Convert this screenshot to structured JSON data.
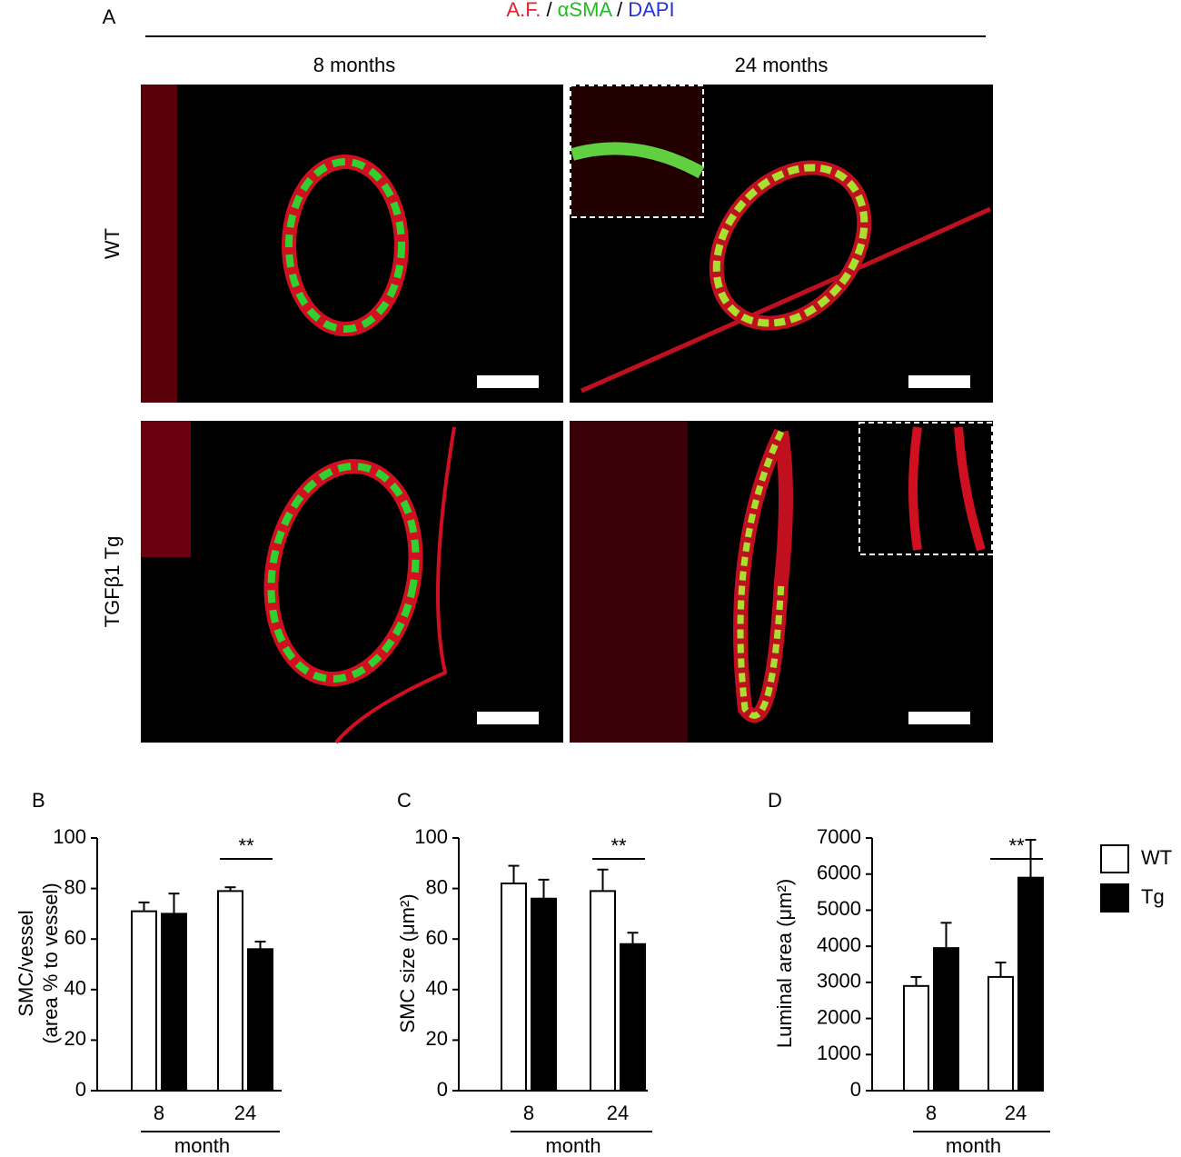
{
  "panel_a": {
    "label": "A",
    "title_parts": [
      {
        "text": "A.F.",
        "color": "#e8202a"
      },
      {
        "text": " / ",
        "color": "#000000"
      },
      {
        "text": "αSMA",
        "color": "#22bb22"
      },
      {
        "text": " / ",
        "color": "#000000"
      },
      {
        "text": "DAPI",
        "color": "#2233dd"
      }
    ],
    "columns": [
      "8 months",
      "24 months"
    ],
    "rows": [
      "WT",
      "TGFβ1 Tg"
    ]
  },
  "chart_data": [
    {
      "type": "bar",
      "label": "B",
      "ylabel": [
        "SMC/vessel",
        "(area % to vessel)"
      ],
      "xlabel": "month",
      "categories": [
        "8",
        "24"
      ],
      "annotation": "**",
      "series": [
        {
          "color": "#ffffff",
          "values": [
            71,
            79
          ],
          "errors": [
            3.5,
            1.5
          ]
        },
        {
          "color": "#000000",
          "values": [
            70,
            56
          ],
          "errors": [
            8,
            3
          ]
        }
      ],
      "ylim": [
        0,
        100
      ],
      "yticks": [
        0,
        20,
        40,
        60,
        80,
        100
      ]
    },
    {
      "type": "bar",
      "label": "C",
      "ylabel": [
        "SMC size (μm²)"
      ],
      "xlabel": "month",
      "categories": [
        "8",
        "24"
      ],
      "annotation": "**",
      "series": [
        {
          "color": "#ffffff",
          "values": [
            82,
            79
          ],
          "errors": [
            7,
            8.5
          ]
        },
        {
          "color": "#000000",
          "values": [
            76,
            58
          ],
          "errors": [
            7.5,
            4.5
          ]
        }
      ],
      "ylim": [
        0,
        100
      ],
      "yticks": [
        0,
        20,
        40,
        60,
        80,
        100
      ]
    },
    {
      "type": "bar",
      "label": "D",
      "ylabel": [
        "Luminal area (μm²)"
      ],
      "xlabel": "month",
      "categories": [
        "8",
        "24"
      ],
      "annotation": "**",
      "series": [
        {
          "name": "WT",
          "color": "#ffffff",
          "values": [
            2900,
            3150
          ],
          "errors": [
            250,
            400
          ]
        },
        {
          "name": "Tg",
          "color": "#000000",
          "values": [
            3950,
            5900
          ],
          "errors": [
            700,
            1050
          ]
        }
      ],
      "ylim": [
        0,
        7000
      ],
      "yticks": [
        0,
        1000,
        2000,
        3000,
        4000,
        5000,
        6000,
        7000
      ],
      "legend": "right"
    }
  ]
}
